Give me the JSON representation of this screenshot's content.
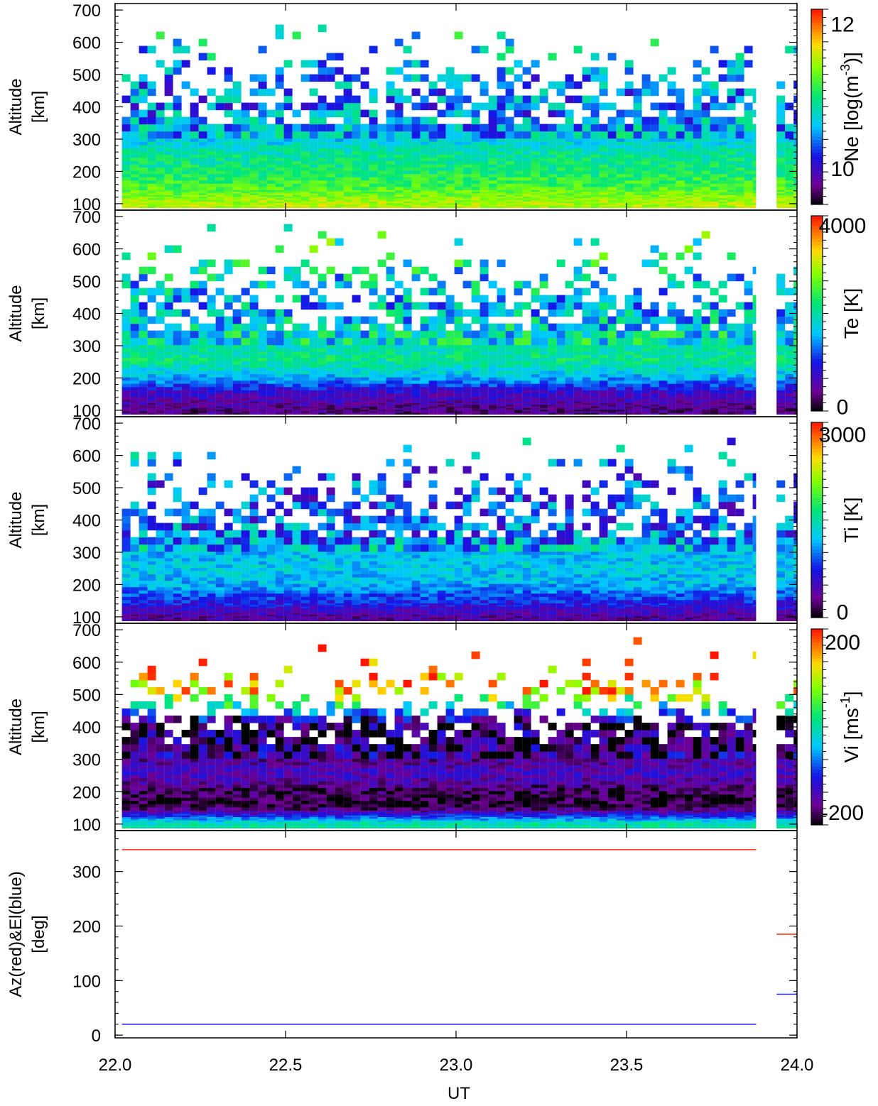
{
  "chart_data": {
    "type": "heatmap",
    "x_axis": {
      "label": "UT",
      "range": [
        22.0,
        24.0
      ],
      "ticks": [
        22.0,
        22.5,
        23.0,
        23.5,
        24.0
      ],
      "tick_labels": [
        "22.0",
        "22.5",
        "23.0",
        "23.5",
        "24.0"
      ]
    },
    "panels": [
      {
        "id": "ne",
        "ylabel": [
          "Altitude",
          "[km]"
        ],
        "yrange": [
          80,
          720
        ],
        "yticks": [
          100,
          200,
          300,
          400,
          500,
          600,
          700
        ],
        "colorbar": {
          "title": "Ne [log(m",
          "title_sup": "-3",
          "title_end": ")]",
          "min": 9.5,
          "max": 12.2,
          "labels": [
            "12",
            "10"
          ],
          "label_values": [
            12,
            10
          ]
        },
        "profile": [
          {
            "alt": 100,
            "value": 11.5
          },
          {
            "alt": 150,
            "value": 11.2
          },
          {
            "alt": 200,
            "value": 11.0
          },
          {
            "alt": 250,
            "value": 10.9
          },
          {
            "alt": 300,
            "value": 10.6
          },
          {
            "alt": 350,
            "value": 10.5
          },
          {
            "alt": 400,
            "value": 10.4
          },
          {
            "alt": 500,
            "value": 10.5
          },
          {
            "alt": 650,
            "value": 10.8
          }
        ]
      },
      {
        "id": "te",
        "ylabel": [
          "Altitude",
          "[km]"
        ],
        "yrange": [
          80,
          720
        ],
        "yticks": [
          100,
          200,
          300,
          400,
          500,
          600,
          700
        ],
        "colorbar": {
          "title": "Te [K]",
          "min": -100,
          "max": 4200,
          "labels": [
            "4000",
            "0"
          ],
          "label_values": [
            4000,
            0
          ]
        },
        "profile": [
          {
            "alt": 100,
            "value": 300
          },
          {
            "alt": 150,
            "value": 700
          },
          {
            "alt": 200,
            "value": 1600
          },
          {
            "alt": 250,
            "value": 2200
          },
          {
            "alt": 300,
            "value": 2000
          },
          {
            "alt": 350,
            "value": 1800
          },
          {
            "alt": 400,
            "value": 1600
          },
          {
            "alt": 500,
            "value": 1800
          },
          {
            "alt": 650,
            "value": 2500
          }
        ]
      },
      {
        "id": "ti",
        "ylabel": [
          "Altitude",
          "[km]"
        ],
        "yrange": [
          80,
          720
        ],
        "yticks": [
          100,
          200,
          300,
          400,
          500,
          600,
          700
        ],
        "colorbar": {
          "title": "Ti [K]",
          "min": -100,
          "max": 3200,
          "labels": [
            "3000",
            "0"
          ],
          "label_values": [
            3000,
            0
          ]
        },
        "profile": [
          {
            "alt": 100,
            "value": 300
          },
          {
            "alt": 150,
            "value": 800
          },
          {
            "alt": 200,
            "value": 1200
          },
          {
            "alt": 250,
            "value": 1300
          },
          {
            "alt": 300,
            "value": 1200
          },
          {
            "alt": 350,
            "value": 1000
          },
          {
            "alt": 400,
            "value": 900
          },
          {
            "alt": 500,
            "value": 900
          },
          {
            "alt": 650,
            "value": 1200
          }
        ]
      },
      {
        "id": "vi",
        "ylabel": [
          "Altitude",
          "[km]"
        ],
        "yrange": [
          80,
          720
        ],
        "yticks": [
          100,
          200,
          300,
          400,
          500,
          600,
          700
        ],
        "colorbar": {
          "title": "Vi [ms",
          "title_sup": "-1",
          "title_end": "]",
          "min": -230,
          "max": 230,
          "labels": [
            "200",
            "-200"
          ],
          "label_values": [
            200,
            -200
          ]
        },
        "profile": [
          {
            "alt": 100,
            "value": 0
          },
          {
            "alt": 150,
            "value": -220
          },
          {
            "alt": 200,
            "value": -200
          },
          {
            "alt": 250,
            "value": -150
          },
          {
            "alt": 300,
            "value": -180
          },
          {
            "alt": 350,
            "value": -200
          },
          {
            "alt": 400,
            "value": -200
          },
          {
            "alt": 500,
            "value": 150
          },
          {
            "alt": 650,
            "value": 220
          }
        ]
      }
    ],
    "line_panel": {
      "ylabel": [
        "Az(red)&El(blue)",
        "[deg]"
      ],
      "yrange": [
        -5,
        375
      ],
      "yticks": [
        0,
        100,
        200,
        300
      ],
      "series": [
        {
          "name": "Az",
          "color": "#ff2a00",
          "segments": [
            {
              "x": [
                22.02,
                23.88
              ],
              "y": [
                340,
                340
              ]
            },
            {
              "x": [
                23.94,
                24.0
              ],
              "y": [
                185,
                185
              ]
            }
          ]
        },
        {
          "name": "El",
          "color": "#1a1aff",
          "segments": [
            {
              "x": [
                22.02,
                23.88
              ],
              "y": [
                20,
                20
              ]
            },
            {
              "x": [
                23.94,
                24.0
              ],
              "y": [
                75,
                75
              ]
            }
          ]
        }
      ]
    },
    "data_coverage": [
      {
        "x": [
          22.02,
          23.88
        ]
      },
      {
        "x": [
          23.94,
          24.0
        ]
      }
    ],
    "grid": false
  }
}
